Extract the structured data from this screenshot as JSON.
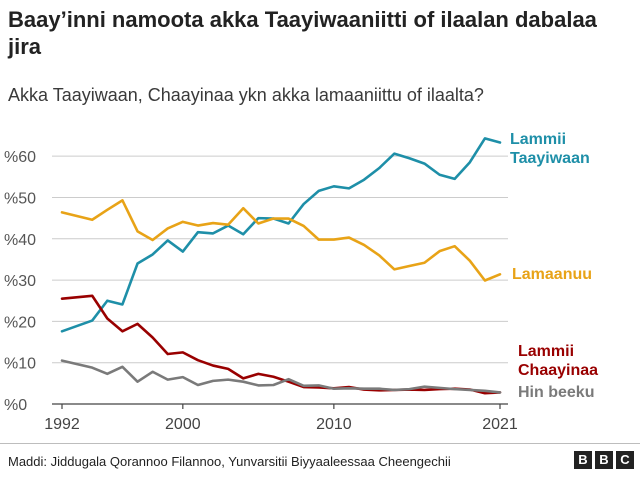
{
  "title": "Baay’inni namoota akka Taayiwaaniitti of ilaalan dabalaa jira",
  "subtitle": "Akka Taayiwaan, Chaayinaa ykn akka lamaaniittu of ilaalta?",
  "source": "Maddi: Jiddugala Qorannoo Filannoo, Yunvarsitii Biyyaaleessaa Cheengechii",
  "logo": [
    "B",
    "B",
    "C"
  ],
  "colors": {
    "taiwanese": "#1e8fa8",
    "both": "#e8a317",
    "chinese": "#990000",
    "no_answer": "#7a7a7a",
    "grid": "#cccccc",
    "axis": "#444444"
  },
  "chart_data": {
    "type": "line",
    "xlim": [
      1992,
      2021
    ],
    "ylim": [
      0,
      65
    ],
    "x_ticks": [
      1992,
      2000,
      2010,
      2021
    ],
    "y_ticks": [
      0,
      10,
      20,
      30,
      40,
      50,
      60
    ],
    "y_tick_labels": [
      "%0",
      "%10",
      "%20",
      "%30",
      "%40",
      "%50",
      "%60"
    ],
    "x_tick_labels": [
      "1992",
      "2000",
      "2010",
      "2021"
    ],
    "grid": true,
    "series": [
      {
        "name": "Lammii Taayiwaan",
        "name_lines": [
          "Lammii",
          "Taayiwaan"
        ],
        "color_key": "taiwanese",
        "points": [
          [
            1992,
            17.6
          ],
          [
            1994,
            20.2
          ],
          [
            1995,
            25.0
          ],
          [
            1996,
            24.1
          ],
          [
            1997,
            34.0
          ],
          [
            1998,
            36.2
          ],
          [
            1999,
            39.6
          ],
          [
            2000,
            36.9
          ],
          [
            2001,
            41.6
          ],
          [
            2002,
            41.3
          ],
          [
            2003,
            43.2
          ],
          [
            2004,
            41.1
          ],
          [
            2005,
            45.0
          ],
          [
            2006,
            44.9
          ],
          [
            2007,
            43.7
          ],
          [
            2008,
            48.4
          ],
          [
            2009,
            51.6
          ],
          [
            2010,
            52.7
          ],
          [
            2011,
            52.2
          ],
          [
            2012,
            54.3
          ],
          [
            2013,
            57.1
          ],
          [
            2014,
            60.6
          ],
          [
            2015,
            59.5
          ],
          [
            2016,
            58.2
          ],
          [
            2017,
            55.5
          ],
          [
            2018,
            54.5
          ],
          [
            2019,
            58.5
          ],
          [
            2020,
            64.3
          ],
          [
            2021,
            63.3
          ]
        ]
      },
      {
        "name": "Lamaanuu",
        "name_lines": [
          "Lamaanuu"
        ],
        "color_key": "both",
        "points": [
          [
            1992,
            46.4
          ],
          [
            1994,
            44.6
          ],
          [
            1995,
            47.0
          ],
          [
            1996,
            49.3
          ],
          [
            1997,
            41.8
          ],
          [
            1998,
            39.7
          ],
          [
            1999,
            42.5
          ],
          [
            2000,
            44.1
          ],
          [
            2001,
            43.2
          ],
          [
            2002,
            43.8
          ],
          [
            2003,
            43.4
          ],
          [
            2004,
            47.4
          ],
          [
            2005,
            43.7
          ],
          [
            2006,
            44.9
          ],
          [
            2007,
            44.9
          ],
          [
            2008,
            43.1
          ],
          [
            2009,
            39.8
          ],
          [
            2010,
            39.8
          ],
          [
            2011,
            40.3
          ],
          [
            2012,
            38.5
          ],
          [
            2013,
            36.0
          ],
          [
            2014,
            32.6
          ],
          [
            2015,
            33.4
          ],
          [
            2016,
            34.2
          ],
          [
            2017,
            37.0
          ],
          [
            2018,
            38.2
          ],
          [
            2019,
            34.7
          ],
          [
            2020,
            29.9
          ],
          [
            2021,
            31.4
          ]
        ]
      },
      {
        "name": "Lammii Chaayinaa",
        "name_lines": [
          "Lammii",
          "Chaayinaa"
        ],
        "color_key": "chinese",
        "points": [
          [
            1992,
            25.5
          ],
          [
            1994,
            26.2
          ],
          [
            1995,
            20.7
          ],
          [
            1996,
            17.6
          ],
          [
            1997,
            19.4
          ],
          [
            1998,
            16.1
          ],
          [
            1999,
            12.1
          ],
          [
            2000,
            12.5
          ],
          [
            2001,
            10.6
          ],
          [
            2002,
            9.3
          ],
          [
            2003,
            8.5
          ],
          [
            2004,
            6.2
          ],
          [
            2005,
            7.3
          ],
          [
            2006,
            6.6
          ],
          [
            2007,
            5.4
          ],
          [
            2008,
            4.1
          ],
          [
            2009,
            4.0
          ],
          [
            2010,
            3.8
          ],
          [
            2011,
            4.1
          ],
          [
            2012,
            3.5
          ],
          [
            2013,
            3.3
          ],
          [
            2014,
            3.4
          ],
          [
            2015,
            3.5
          ],
          [
            2016,
            3.4
          ],
          [
            2017,
            3.6
          ],
          [
            2018,
            3.7
          ],
          [
            2019,
            3.5
          ],
          [
            2020,
            2.6
          ],
          [
            2021,
            2.8
          ]
        ]
      },
      {
        "name": "Hin beeku",
        "name_lines": [
          "Hin beeku"
        ],
        "color_key": "no_answer",
        "points": [
          [
            1992,
            10.5
          ],
          [
            1994,
            8.8
          ],
          [
            1995,
            7.3
          ],
          [
            1996,
            9.0
          ],
          [
            1997,
            5.4
          ],
          [
            1998,
            7.8
          ],
          [
            1999,
            5.9
          ],
          [
            2000,
            6.5
          ],
          [
            2001,
            4.6
          ],
          [
            2002,
            5.6
          ],
          [
            2003,
            5.9
          ],
          [
            2004,
            5.4
          ],
          [
            2005,
            4.5
          ],
          [
            2006,
            4.6
          ],
          [
            2007,
            6.0
          ],
          [
            2008,
            4.4
          ],
          [
            2009,
            4.5
          ],
          [
            2010,
            3.7
          ],
          [
            2011,
            3.8
          ],
          [
            2012,
            3.7
          ],
          [
            2013,
            3.7
          ],
          [
            2014,
            3.4
          ],
          [
            2015,
            3.6
          ],
          [
            2016,
            4.2
          ],
          [
            2017,
            3.9
          ],
          [
            2018,
            3.6
          ],
          [
            2019,
            3.4
          ],
          [
            2020,
            3.2
          ],
          [
            2021,
            2.8
          ]
        ]
      }
    ]
  }
}
